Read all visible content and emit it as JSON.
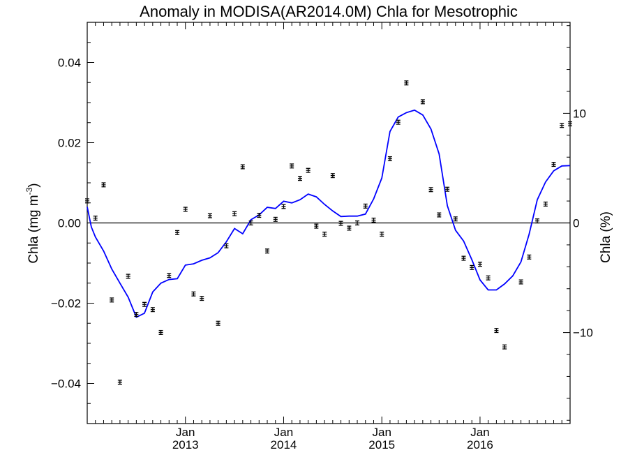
{
  "chart_data": {
    "type": "scatter",
    "title": "Anomaly in MODISA(AR2014.0M) Chla for Mesotrophic",
    "ylabel": "Chla (mg m",
    "ylabel_sup": "-3",
    "ylabel_end": ")",
    "y2label": "Chla (%)",
    "xlim": [
      2012.0,
      2016.917
    ],
    "ylim": [
      -0.05,
      0.05
    ],
    "y2lim": [
      -18.3,
      18.3
    ],
    "grid": false,
    "x_ticks": [
      {
        "x": 2013.0,
        "month": "Jan",
        "year": "2013"
      },
      {
        "x": 2014.0,
        "month": "Jan",
        "year": "2014"
      },
      {
        "x": 2015.0,
        "month": "Jan",
        "year": "2015"
      },
      {
        "x": 2016.0,
        "month": "Jan",
        "year": "2016"
      }
    ],
    "y_ticks": [
      {
        "v": 0.04,
        "label": "0.04"
      },
      {
        "v": 0.02,
        "label": "0.02"
      },
      {
        "v": 0.0,
        "label": "0.00"
      },
      {
        "v": -0.02,
        "label": "−0.02"
      },
      {
        "v": -0.04,
        "label": "−0.04"
      }
    ],
    "y2_ticks": [
      {
        "v": 10,
        "label": "10"
      },
      {
        "v": 0,
        "label": "0"
      },
      {
        "v": -10,
        "label": "−10"
      }
    ],
    "colors": {
      "points": "#000000",
      "line": "#0000ff",
      "axes": "#000000"
    },
    "series": [
      {
        "kind": "points_with_error_bars",
        "error": 0.0005,
        "points": [
          [
            2012.0,
            0.0055
          ],
          [
            2012.083,
            0.0012
          ],
          [
            2012.167,
            0.0095
          ],
          [
            2012.25,
            -0.0192
          ],
          [
            2012.333,
            -0.0397
          ],
          [
            2012.417,
            -0.0133
          ],
          [
            2012.5,
            -0.0228
          ],
          [
            2012.583,
            -0.0203
          ],
          [
            2012.667,
            -0.0216
          ],
          [
            2012.75,
            -0.0273
          ],
          [
            2012.833,
            -0.0131
          ],
          [
            2012.917,
            -0.0024
          ],
          [
            2013.0,
            0.0034
          ],
          [
            2013.083,
            -0.0177
          ],
          [
            2013.167,
            -0.0188
          ],
          [
            2013.25,
            0.0018
          ],
          [
            2013.333,
            -0.025
          ],
          [
            2013.417,
            -0.0057
          ],
          [
            2013.5,
            0.0023
          ],
          [
            2013.583,
            0.014
          ],
          [
            2013.667,
            0.0
          ],
          [
            2013.75,
            0.0019
          ],
          [
            2013.833,
            -0.007
          ],
          [
            2013.917,
            0.0009
          ],
          [
            2014.0,
            0.0041
          ],
          [
            2014.083,
            0.0142
          ],
          [
            2014.167,
            0.0111
          ],
          [
            2014.25,
            0.0131
          ],
          [
            2014.333,
            -0.0008
          ],
          [
            2014.417,
            -0.0028
          ],
          [
            2014.5,
            0.0118
          ],
          [
            2014.583,
            -0.0001
          ],
          [
            2014.667,
            -0.0013
          ],
          [
            2014.75,
            0.0
          ],
          [
            2014.833,
            0.0042
          ],
          [
            2014.917,
            0.0007
          ],
          [
            2015.0,
            -0.0028
          ],
          [
            2015.083,
            0.016
          ],
          [
            2015.167,
            0.0251
          ],
          [
            2015.25,
            0.0349
          ],
          [
            2015.417,
            0.0302
          ],
          [
            2015.5,
            0.0083
          ],
          [
            2015.583,
            0.002
          ],
          [
            2015.667,
            0.0084
          ],
          [
            2015.75,
            0.001
          ],
          [
            2015.833,
            -0.0088
          ],
          [
            2015.917,
            -0.0111
          ],
          [
            2016.0,
            -0.0103
          ],
          [
            2016.083,
            -0.0137
          ],
          [
            2016.167,
            -0.0268
          ],
          [
            2016.25,
            -0.0309
          ],
          [
            2016.417,
            -0.0147
          ],
          [
            2016.5,
            -0.0085
          ],
          [
            2016.583,
            0.0005
          ],
          [
            2016.667,
            0.0047
          ],
          [
            2016.75,
            0.0146
          ],
          [
            2016.833,
            0.0243
          ],
          [
            2016.917,
            0.0247
          ]
        ]
      },
      {
        "kind": "smoothed_line",
        "points": [
          [
            2012.0,
            0.004
          ],
          [
            2012.042,
            -0.001
          ],
          [
            2012.083,
            -0.0035
          ],
          [
            2012.167,
            -0.007
          ],
          [
            2012.25,
            -0.0115
          ],
          [
            2012.333,
            -0.015
          ],
          [
            2012.417,
            -0.0185
          ],
          [
            2012.5,
            -0.0235
          ],
          [
            2012.583,
            -0.0225
          ],
          [
            2012.667,
            -0.0172
          ],
          [
            2012.75,
            -0.015
          ],
          [
            2012.833,
            -0.0141
          ],
          [
            2012.917,
            -0.0139
          ],
          [
            2013.0,
            -0.0105
          ],
          [
            2013.083,
            -0.0102
          ],
          [
            2013.167,
            -0.0093
          ],
          [
            2013.25,
            -0.0087
          ],
          [
            2013.333,
            -0.0074
          ],
          [
            2013.417,
            -0.0047
          ],
          [
            2013.5,
            -0.0014
          ],
          [
            2013.583,
            -0.0027
          ],
          [
            2013.667,
            0.0008
          ],
          [
            2013.75,
            0.002
          ],
          [
            2013.833,
            0.0039
          ],
          [
            2013.917,
            0.0036
          ],
          [
            2014.0,
            0.0054
          ],
          [
            2014.083,
            0.005
          ],
          [
            2014.167,
            0.0058
          ],
          [
            2014.25,
            0.0072
          ],
          [
            2014.333,
            0.0065
          ],
          [
            2014.417,
            0.0046
          ],
          [
            2014.5,
            0.003
          ],
          [
            2014.583,
            0.0016
          ],
          [
            2014.667,
            0.0017
          ],
          [
            2014.75,
            0.0017
          ],
          [
            2014.833,
            0.0022
          ],
          [
            2014.917,
            0.006
          ],
          [
            2015.0,
            0.0112
          ],
          [
            2015.083,
            0.0228
          ],
          [
            2015.167,
            0.0264
          ],
          [
            2015.25,
            0.0275
          ],
          [
            2015.333,
            0.0281
          ],
          [
            2015.417,
            0.0269
          ],
          [
            2015.5,
            0.0234
          ],
          [
            2015.583,
            0.0172
          ],
          [
            2015.667,
            0.0043
          ],
          [
            2015.75,
            -0.0018
          ],
          [
            2015.833,
            -0.0045
          ],
          [
            2015.917,
            -0.0092
          ],
          [
            2016.0,
            -0.0142
          ],
          [
            2016.083,
            -0.0167
          ],
          [
            2016.167,
            -0.0167
          ],
          [
            2016.25,
            -0.0152
          ],
          [
            2016.333,
            -0.0132
          ],
          [
            2016.417,
            -0.0097
          ],
          [
            2016.5,
            -0.0028
          ],
          [
            2016.583,
            0.0058
          ],
          [
            2016.667,
            0.0102
          ],
          [
            2016.75,
            0.013
          ],
          [
            2016.833,
            0.0142
          ],
          [
            2016.917,
            0.0143
          ]
        ]
      }
    ]
  }
}
